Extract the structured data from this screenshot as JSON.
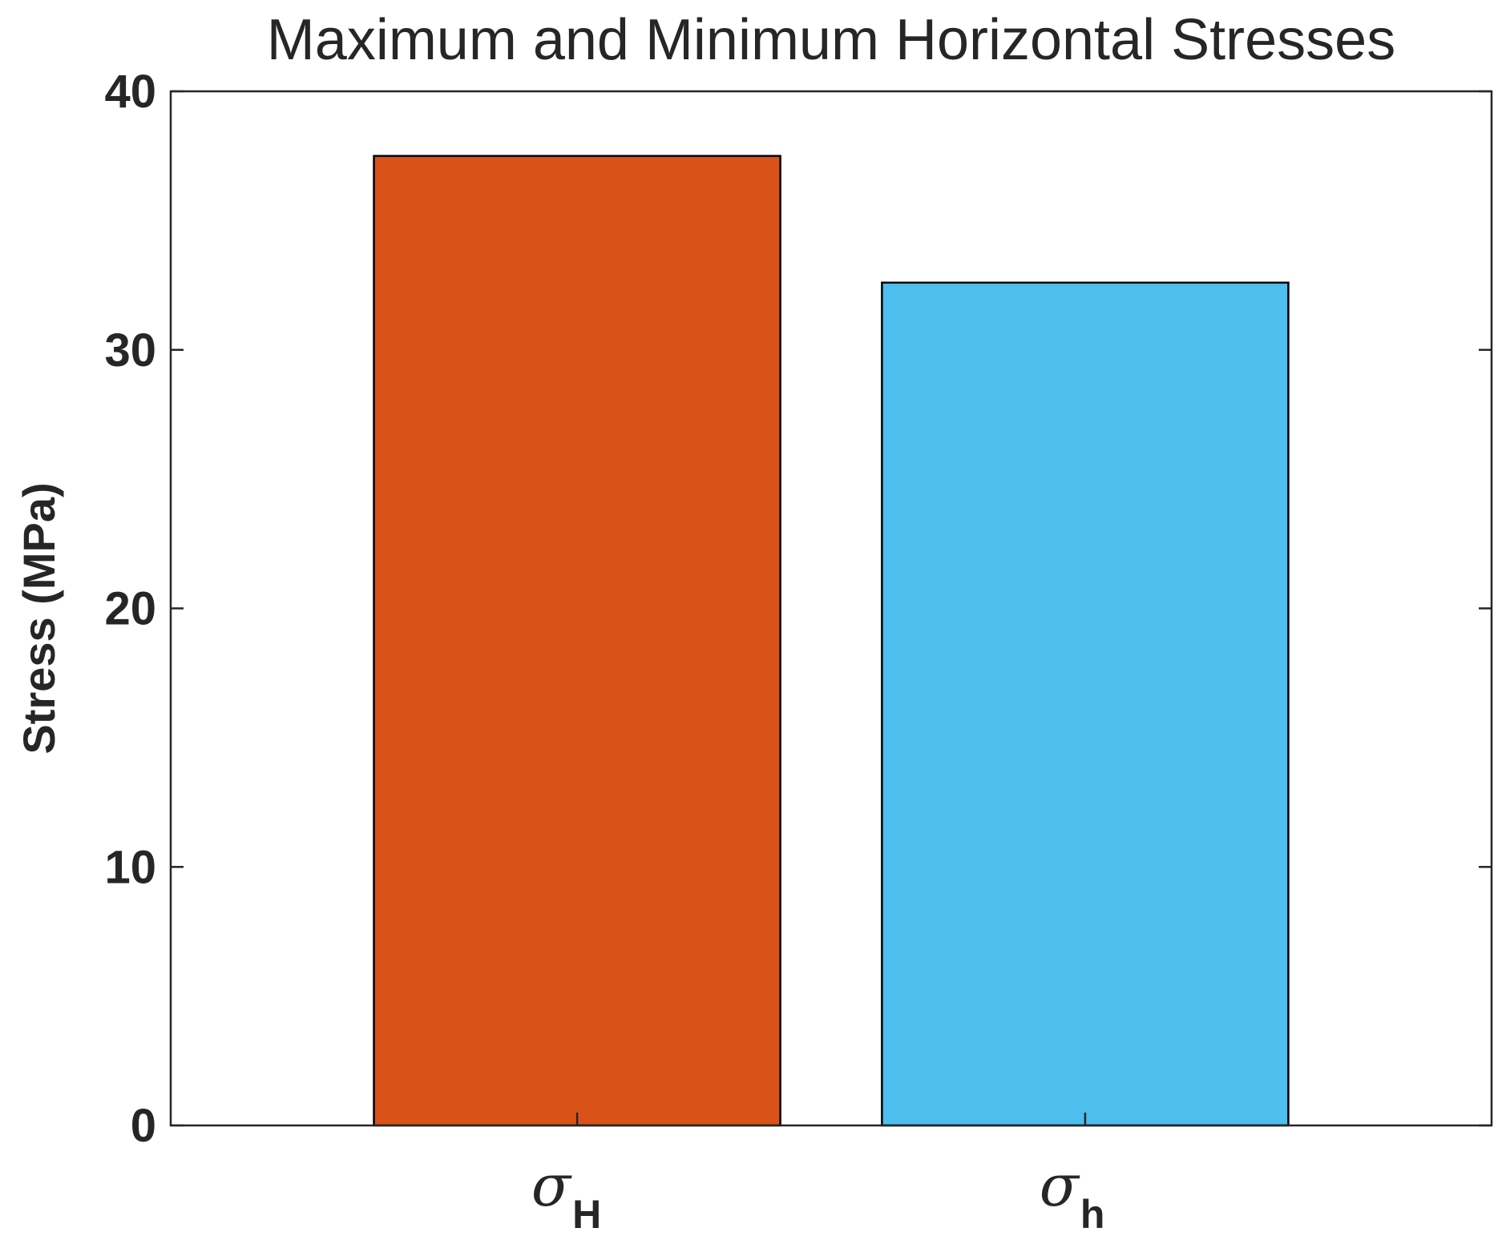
{
  "chart_data": {
    "type": "bar",
    "title": "Maximum and Minimum Horizontal Stresses",
    "ylabel": "Stress (MPa)",
    "xlabel": "",
    "ylim": [
      0,
      40
    ],
    "yticks": [
      "0",
      "10",
      "20",
      "30",
      "40"
    ],
    "categories": [
      {
        "symbol": "σ",
        "subscript": "H"
      },
      {
        "symbol": "σ",
        "subscript": "h"
      }
    ],
    "values": [
      37.5,
      32.6
    ],
    "colors": [
      "#D95319",
      "#4DBEEE"
    ],
    "grid": false,
    "legend": "none"
  }
}
